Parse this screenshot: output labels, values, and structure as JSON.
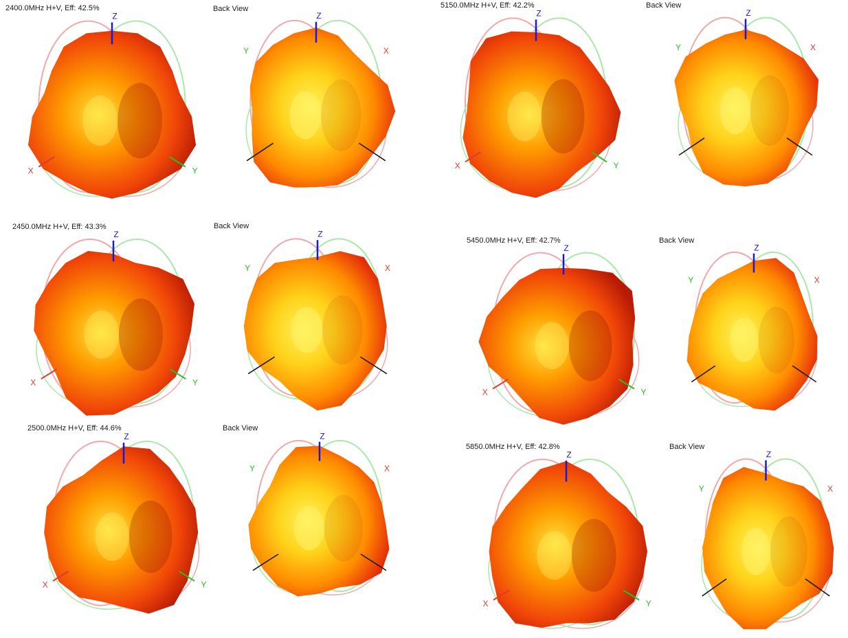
{
  "axis_labels": {
    "x": "X",
    "y": "Y",
    "z": "Z"
  },
  "colors": {
    "z_axis": "#1a1ad6",
    "x_axis": "#e03b2a",
    "y_axis": "#22c322",
    "back_axis": "#1a1a1a",
    "outline_red": "#f4a7a7",
    "outline_green": "#a9e8a9"
  },
  "panels": [
    {
      "front_title": "2400.0MHz H+V, Eff: 42.5%",
      "back_title": "Back View",
      "efficiency_percent": 42.5,
      "frequency_mhz": 2400.0
    },
    {
      "front_title": "2450.0MHz H+V, Eff: 43.3%",
      "back_title": "Back View",
      "efficiency_percent": 43.3,
      "frequency_mhz": 2450.0
    },
    {
      "front_title": "2500.0MHz H+V, Eff: 44.6%",
      "back_title": "Back View",
      "efficiency_percent": 44.6,
      "frequency_mhz": 2500.0
    },
    {
      "front_title": "5150.0MHz H+V, Eff: 42.2%",
      "back_title": "Back View",
      "efficiency_percent": 42.2,
      "frequency_mhz": 5150.0
    },
    {
      "front_title": "5450.0MHz H+V, Eff: 42.7%",
      "back_title": "Back View",
      "efficiency_percent": 42.7,
      "frequency_mhz": 5450.0
    },
    {
      "front_title": "5850.0MHz H+V, Eff: 42.8%",
      "back_title": "Back View",
      "efficiency_percent": 42.8,
      "frequency_mhz": 5850.0
    }
  ]
}
